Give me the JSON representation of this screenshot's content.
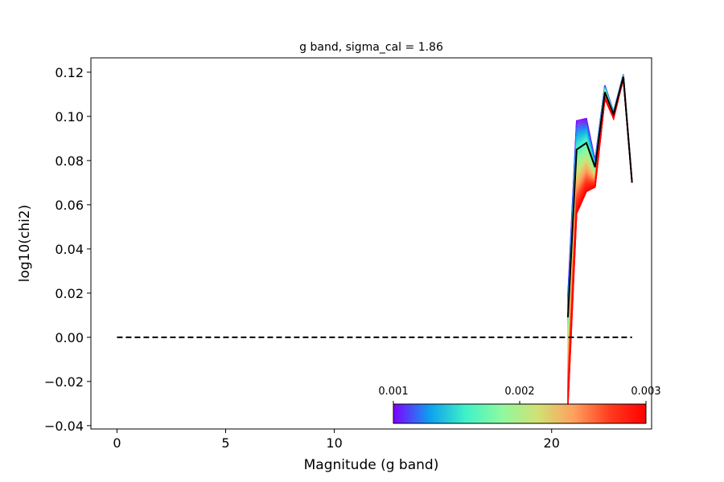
{
  "chart_data": {
    "type": "line",
    "title": "g band, sigma_cal = 1.86",
    "xlabel": "Magnitude (g band)",
    "ylabel": "log10(chi2)",
    "xlim": [
      -1.2,
      24.6
    ],
    "ylim": [
      -0.0415,
      0.1265
    ],
    "xticks": [
      0,
      5,
      10,
      20
    ],
    "xtick_labels": [
      "0",
      "5",
      "10",
      "20"
    ],
    "yticks": [
      -0.04,
      -0.02,
      0.0,
      0.02,
      0.04,
      0.06,
      0.08,
      0.1,
      0.12
    ],
    "ytick_labels": [
      "−0.04",
      "−0.02",
      "0.00",
      "0.02",
      "0.04",
      "0.06",
      "0.08",
      "0.10",
      "0.12"
    ],
    "grid": false,
    "x": [
      20.75,
      21.15,
      21.6,
      22.0,
      22.45,
      22.85,
      23.3,
      23.7
    ],
    "family_first": [
      0.019,
      0.098,
      0.099,
      0.08,
      0.114,
      0.102,
      0.119,
      0.07
    ],
    "family_last": [
      -0.031,
      0.056,
      0.066,
      0.068,
      0.108,
      0.099,
      0.117,
      0.07
    ],
    "series": [
      {
        "name": "",
        "color": "#000000",
        "values": [
          0.009,
          0.085,
          0.088,
          0.077,
          0.111,
          0.101,
          0.118,
          0.07
        ]
      }
    ],
    "reference_line": {
      "y": 0.0,
      "x": [
        0,
        23.7
      ],
      "style": "dashed",
      "color": "#000000"
    },
    "colorbar": {
      "colormap": "rainbow",
      "colors": [
        "#8000ff",
        "#0d9ff0",
        "#3ff2c8",
        "#8ef9a0",
        "#d2e174",
        "#ffa05e",
        "#ff3b1e",
        "#ff0000"
      ],
      "range": [
        0.001,
        0.003
      ],
      "ticks": [
        0.001,
        0.002,
        0.003
      ],
      "tick_labels": [
        "0.001",
        "0.002",
        "0.003"
      ]
    },
    "n_family_lines": 60
  }
}
